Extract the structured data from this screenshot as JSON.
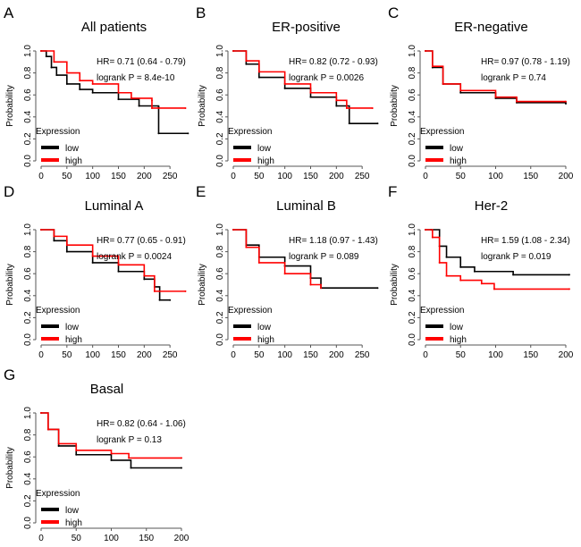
{
  "chart_data": [
    {
      "letter": "A",
      "title": "All patients",
      "type": "line",
      "ylabel": "Probability",
      "hr": "HR= 0.71 (0.64 - 0.79)",
      "p": "logrank P = 8.4e-10",
      "xlim": [
        0,
        300
      ],
      "xticks": [
        0,
        50,
        100,
        150,
        200,
        250
      ],
      "ylim": [
        0,
        1
      ],
      "yticks": [
        "0.0",
        "0.2",
        "0.4",
        "0.6",
        "0.8",
        "1.0"
      ],
      "legend_title": "Expression",
      "series": [
        {
          "name": "low",
          "color": "#000000",
          "points": [
            [
              0,
              1
            ],
            [
              10,
              0.95
            ],
            [
              20,
              0.85
            ],
            [
              30,
              0.78
            ],
            [
              50,
              0.7
            ],
            [
              75,
              0.65
            ],
            [
              100,
              0.62
            ],
            [
              150,
              0.56
            ],
            [
              190,
              0.5
            ],
            [
              228,
              0.49
            ],
            [
              228,
              0.25
            ],
            [
              285,
              0.25
            ]
          ]
        },
        {
          "name": "high",
          "color": "#ff0000",
          "points": [
            [
              0,
              1
            ],
            [
              25,
              0.9
            ],
            [
              50,
              0.8
            ],
            [
              75,
              0.73
            ],
            [
              100,
              0.7
            ],
            [
              150,
              0.62
            ],
            [
              175,
              0.57
            ],
            [
              215,
              0.55
            ],
            [
              215,
              0.48
            ],
            [
              280,
              0.48
            ]
          ]
        }
      ]
    },
    {
      "letter": "B",
      "title": "ER-positive",
      "type": "line",
      "ylabel": "Probability",
      "hr": "HR= 0.82 (0.72 - 0.93)",
      "p": "logrank P = 0.0026",
      "xlim": [
        0,
        300
      ],
      "xticks": [
        0,
        50,
        100,
        150,
        200,
        250
      ],
      "ylim": [
        0,
        1
      ],
      "yticks": [
        "0.0",
        "0.2",
        "0.4",
        "0.6",
        "0.8",
        "1.0"
      ],
      "legend_title": "Expression",
      "series": [
        {
          "name": "low",
          "color": "#000000",
          "points": [
            [
              0,
              1
            ],
            [
              25,
              0.88
            ],
            [
              50,
              0.76
            ],
            [
              100,
              0.66
            ],
            [
              150,
              0.58
            ],
            [
              200,
              0.5
            ],
            [
              225,
              0.48
            ],
            [
              225,
              0.34
            ],
            [
              280,
              0.34
            ]
          ]
        },
        {
          "name": "high",
          "color": "#ff0000",
          "points": [
            [
              0,
              1
            ],
            [
              25,
              0.91
            ],
            [
              50,
              0.81
            ],
            [
              100,
              0.7
            ],
            [
              150,
              0.62
            ],
            [
              200,
              0.55
            ],
            [
              220,
              0.48
            ],
            [
              270,
              0.48
            ]
          ]
        }
      ]
    },
    {
      "letter": "C",
      "title": "ER-negative",
      "type": "line",
      "ylabel": "Probability",
      "hr": "HR= 0.97 (0.78 - 1.19)",
      "p": "logrank P = 0.74",
      "xlim": [
        0,
        200
      ],
      "xticks": [
        0,
        50,
        100,
        150,
        200
      ],
      "ylim": [
        0,
        1
      ],
      "yticks": [
        "0.0",
        "0.2",
        "0.4",
        "0.6",
        "0.8",
        "1.0"
      ],
      "legend_title": "Expression",
      "series": [
        {
          "name": "low",
          "color": "#000000",
          "points": [
            [
              0,
              1
            ],
            [
              10,
              0.85
            ],
            [
              25,
              0.7
            ],
            [
              50,
              0.62
            ],
            [
              100,
              0.57
            ],
            [
              130,
              0.53
            ],
            [
              200,
              0.52
            ]
          ]
        },
        {
          "name": "high",
          "color": "#ff0000",
          "points": [
            [
              0,
              1
            ],
            [
              10,
              0.86
            ],
            [
              25,
              0.7
            ],
            [
              50,
              0.64
            ],
            [
              100,
              0.58
            ],
            [
              130,
              0.54
            ],
            [
              200,
              0.54
            ]
          ]
        }
      ]
    },
    {
      "letter": "D",
      "title": "Luminal A",
      "type": "line",
      "ylabel": "Probability",
      "hr": "HR= 0.77 (0.65 - 0.91)",
      "p": "logrank P = 0.0024",
      "xlim": [
        0,
        300
      ],
      "xticks": [
        0,
        50,
        100,
        150,
        200,
        250
      ],
      "ylim": [
        0,
        1
      ],
      "yticks": [
        "0.0",
        "0.2",
        "0.4",
        "0.6",
        "0.8",
        "1.0"
      ],
      "legend_title": "Expression",
      "series": [
        {
          "name": "low",
          "color": "#000000",
          "points": [
            [
              0,
              1
            ],
            [
              25,
              0.9
            ],
            [
              50,
              0.8
            ],
            [
              100,
              0.7
            ],
            [
              150,
              0.62
            ],
            [
              200,
              0.55
            ],
            [
              220,
              0.48
            ],
            [
              230,
              0.36
            ],
            [
              250,
              0.36
            ]
          ]
        },
        {
          "name": "high",
          "color": "#ff0000",
          "points": [
            [
              0,
              1
            ],
            [
              25,
              0.94
            ],
            [
              50,
              0.86
            ],
            [
              100,
              0.76
            ],
            [
              150,
              0.68
            ],
            [
              200,
              0.58
            ],
            [
              220,
              0.44
            ],
            [
              280,
              0.44
            ]
          ]
        }
      ]
    },
    {
      "letter": "E",
      "title": "Luminal B",
      "type": "line",
      "ylabel": "Probability",
      "hr": "HR= 1.18 (0.97 - 1.43)",
      "p": "logrank P = 0.089",
      "xlim": [
        0,
        300
      ],
      "xticks": [
        0,
        50,
        100,
        150,
        200,
        250
      ],
      "ylim": [
        0,
        1
      ],
      "yticks": [
        "0.0",
        "0.2",
        "0.4",
        "0.6",
        "0.8",
        "1.0"
      ],
      "legend_title": "Expression",
      "series": [
        {
          "name": "low",
          "color": "#000000",
          "points": [
            [
              0,
              1
            ],
            [
              25,
              0.86
            ],
            [
              50,
              0.75
            ],
            [
              100,
              0.67
            ],
            [
              150,
              0.56
            ],
            [
              170,
              0.47
            ],
            [
              280,
              0.47
            ]
          ]
        },
        {
          "name": "high",
          "color": "#ff0000",
          "points": [
            [
              0,
              1
            ],
            [
              25,
              0.84
            ],
            [
              50,
              0.7
            ],
            [
              100,
              0.6
            ],
            [
              150,
              0.5
            ],
            [
              170,
              0.47
            ]
          ]
        }
      ]
    },
    {
      "letter": "F",
      "title": "Her-2",
      "type": "line",
      "ylabel": "Probability",
      "hr": "HR= 1.59 (1.08 - 2.34)",
      "p": "logrank P = 0.019",
      "xlim": [
        0,
        200
      ],
      "xticks": [
        0,
        50,
        100,
        150,
        200
      ],
      "ylim": [
        0,
        1
      ],
      "yticks": [
        "0.0",
        "0.2",
        "0.4",
        "0.6",
        "0.8",
        "1.0"
      ],
      "legend_title": "Expression",
      "series": [
        {
          "name": "low",
          "color": "#000000",
          "points": [
            [
              0,
              1
            ],
            [
              8,
              1
            ],
            [
              20,
              0.85
            ],
            [
              30,
              0.75
            ],
            [
              50,
              0.66
            ],
            [
              70,
              0.62
            ],
            [
              125,
              0.59
            ],
            [
              205,
              0.59
            ]
          ]
        },
        {
          "name": "high",
          "color": "#ff0000",
          "points": [
            [
              0,
              1
            ],
            [
              10,
              0.93
            ],
            [
              20,
              0.7
            ],
            [
              30,
              0.58
            ],
            [
              50,
              0.54
            ],
            [
              80,
              0.51
            ],
            [
              98,
              0.46
            ],
            [
              205,
              0.46
            ]
          ]
        }
      ]
    },
    {
      "letter": "G",
      "title": "Basal",
      "type": "line",
      "ylabel": "Probability",
      "hr": "HR= 0.82 (0.64 - 1.06)",
      "p": "logrank P = 0.13",
      "xlim": [
        0,
        200
      ],
      "xticks": [
        0,
        50,
        100,
        150,
        200
      ],
      "ylim": [
        0,
        1
      ],
      "yticks": [
        "0.0",
        "0.2",
        "0.4",
        "0.6",
        "0.8",
        "1.0"
      ],
      "legend_title": "Expression",
      "series": [
        {
          "name": "low",
          "color": "#000000",
          "points": [
            [
              0,
              1
            ],
            [
              10,
              0.85
            ],
            [
              25,
              0.7
            ],
            [
              50,
              0.62
            ],
            [
              100,
              0.57
            ],
            [
              128,
              0.5
            ],
            [
              200,
              0.5
            ]
          ]
        },
        {
          "name": "high",
          "color": "#ff0000",
          "points": [
            [
              0,
              1
            ],
            [
              10,
              0.85
            ],
            [
              25,
              0.72
            ],
            [
              50,
              0.66
            ],
            [
              100,
              0.63
            ],
            [
              125,
              0.59
            ],
            [
              200,
              0.59
            ]
          ]
        }
      ]
    }
  ]
}
